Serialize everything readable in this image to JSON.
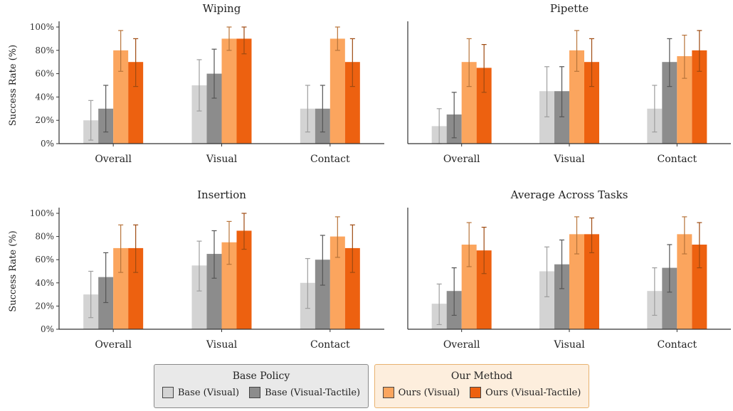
{
  "chart_data": [
    {
      "type": "bar",
      "title": "Wiping",
      "ylabel": "Success Rate (%)",
      "ylim": [
        0,
        100
      ],
      "yticks": [
        "0%",
        "20%",
        "40%",
        "60%",
        "80%",
        "100%"
      ],
      "categories": [
        "Overall",
        "Visual",
        "Contact"
      ],
      "series": [
        {
          "name": "Base (Visual)",
          "values": [
            20,
            50,
            30
          ],
          "err_low": [
            3,
            28,
            10
          ],
          "err_high": [
            37,
            72,
            50
          ]
        },
        {
          "name": "Base (Visual-Tactile)",
          "values": [
            30,
            60,
            30
          ],
          "err_low": [
            10,
            39,
            10
          ],
          "err_high": [
            50,
            81,
            50
          ]
        },
        {
          "name": "Ours (Visual)",
          "values": [
            80,
            90,
            90
          ],
          "err_low": [
            62,
            80,
            80
          ],
          "err_high": [
            97,
            100,
            100
          ]
        },
        {
          "name": "Ours (Visual-Tactile)",
          "values": [
            70,
            90,
            70
          ],
          "err_low": [
            49,
            77,
            49
          ],
          "err_high": [
            90,
            100,
            90
          ]
        }
      ]
    },
    {
      "type": "bar",
      "title": "Pipette",
      "ylabel": "",
      "ylim": [
        0,
        100
      ],
      "yticks": [],
      "categories": [
        "Overall",
        "Visual",
        "Contact"
      ],
      "series": [
        {
          "name": "Base (Visual)",
          "values": [
            15,
            45,
            30
          ],
          "err_low": [
            0,
            23,
            10
          ],
          "err_high": [
            30,
            66,
            50
          ]
        },
        {
          "name": "Base (Visual-Tactile)",
          "values": [
            25,
            45,
            70
          ],
          "err_low": [
            5,
            23,
            49
          ],
          "err_high": [
            44,
            66,
            90
          ]
        },
        {
          "name": "Ours (Visual)",
          "values": [
            70,
            80,
            75
          ],
          "err_low": [
            49,
            62,
            56
          ],
          "err_high": [
            90,
            97,
            93
          ]
        },
        {
          "name": "Ours (Visual-Tactile)",
          "values": [
            65,
            70,
            80
          ],
          "err_low": [
            44,
            49,
            62
          ],
          "err_high": [
            85,
            90,
            97
          ]
        }
      ]
    },
    {
      "type": "bar",
      "title": "Insertion",
      "ylabel": "Success Rate (%)",
      "ylim": [
        0,
        100
      ],
      "yticks": [
        "0%",
        "20%",
        "40%",
        "60%",
        "80%",
        "100%"
      ],
      "categories": [
        "Overall",
        "Visual",
        "Contact"
      ],
      "series": [
        {
          "name": "Base (Visual)",
          "values": [
            30,
            55,
            40
          ],
          "err_low": [
            10,
            33,
            18
          ],
          "err_high": [
            50,
            76,
            61
          ]
        },
        {
          "name": "Base (Visual-Tactile)",
          "values": [
            45,
            65,
            60
          ],
          "err_low": [
            23,
            44,
            38
          ],
          "err_high": [
            66,
            85,
            81
          ]
        },
        {
          "name": "Ours (Visual)",
          "values": [
            70,
            75,
            80
          ],
          "err_low": [
            49,
            56,
            62
          ],
          "err_high": [
            90,
            93,
            97
          ]
        },
        {
          "name": "Ours (Visual-Tactile)",
          "values": [
            70,
            85,
            70
          ],
          "err_low": [
            49,
            69,
            49
          ],
          "err_high": [
            90,
            100,
            90
          ]
        }
      ]
    },
    {
      "type": "bar",
      "title": "Average Across Tasks",
      "ylabel": "",
      "ylim": [
        0,
        100
      ],
      "yticks": [],
      "categories": [
        "Overall",
        "Visual",
        "Contact"
      ],
      "series": [
        {
          "name": "Base (Visual)",
          "values": [
            22,
            50,
            33
          ],
          "err_low": [
            4,
            28,
            12
          ],
          "err_high": [
            39,
            71,
            53
          ]
        },
        {
          "name": "Base (Visual-Tactile)",
          "values": [
            33,
            56,
            53
          ],
          "err_low": [
            12,
            35,
            32
          ],
          "err_high": [
            53,
            77,
            73
          ]
        },
        {
          "name": "Ours (Visual)",
          "values": [
            73,
            82,
            82
          ],
          "err_low": [
            54,
            65,
            65
          ],
          "err_high": [
            92,
            97,
            97
          ]
        },
        {
          "name": "Ours (Visual-Tactile)",
          "values": [
            68,
            82,
            73
          ],
          "err_low": [
            48,
            66,
            53
          ],
          "err_high": [
            88,
            96,
            92
          ]
        }
      ]
    }
  ],
  "legend": {
    "base": {
      "title": "Base Policy",
      "items": [
        "Base (Visual)",
        "Base (Visual-Tactile)"
      ],
      "fill": "#e9e9e9",
      "border": "#8a8a8a"
    },
    "ours": {
      "title": "Our Method",
      "items": [
        "Ours (Visual)",
        "Ours (Visual-Tactile)"
      ],
      "fill": "#fdeedd",
      "border": "#e8b26f"
    }
  },
  "colors": {
    "series": [
      "#d3d3d3",
      "#8c8c8c",
      "#fba55e",
      "#ed6110"
    ],
    "err": [
      "#9e9e9e",
      "#555555",
      "#b8743a",
      "#9e4a10"
    ]
  }
}
